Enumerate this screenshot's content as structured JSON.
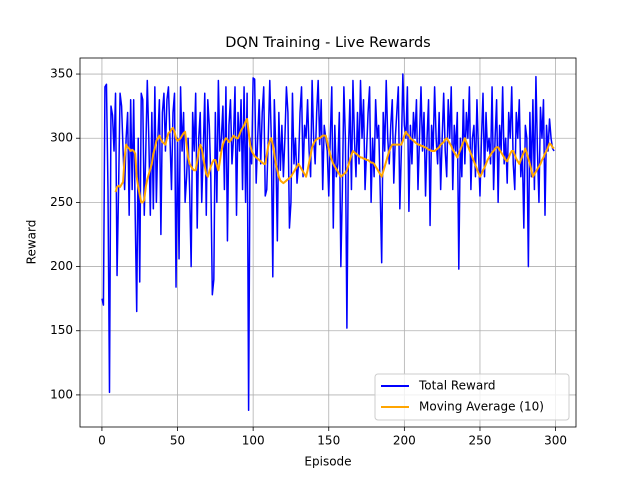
{
  "chart_data": {
    "type": "line",
    "title": "DQN Training - Live Rewards",
    "x_label": "Episode",
    "y_label": "Reward",
    "x": [
      0,
      1,
      2,
      3,
      4,
      5,
      6,
      7,
      8,
      9,
      10,
      11,
      12,
      13,
      14,
      15,
      16,
      17,
      18,
      19,
      20,
      21,
      22,
      23,
      24,
      25,
      26,
      27,
      28,
      29,
      30,
      31,
      32,
      33,
      34,
      35,
      36,
      37,
      38,
      39,
      40,
      41,
      42,
      43,
      44,
      45,
      46,
      47,
      48,
      49,
      50,
      51,
      52,
      53,
      54,
      55,
      56,
      57,
      58,
      59,
      60,
      61,
      62,
      63,
      64,
      65,
      66,
      67,
      68,
      69,
      70,
      71,
      72,
      73,
      74,
      75,
      76,
      77,
      78,
      79,
      80,
      81,
      82,
      83,
      84,
      85,
      86,
      87,
      88,
      89,
      90,
      91,
      92,
      93,
      94,
      95,
      96,
      97,
      98,
      99,
      100,
      101,
      102,
      103,
      104,
      105,
      106,
      107,
      108,
      109,
      110,
      111,
      112,
      113,
      114,
      115,
      116,
      117,
      118,
      119,
      120,
      121,
      122,
      123,
      124,
      125,
      126,
      127,
      128,
      129,
      130,
      131,
      132,
      133,
      134,
      135,
      136,
      137,
      138,
      139,
      140,
      141,
      142,
      143,
      144,
      145,
      146,
      147,
      148,
      149,
      150,
      151,
      152,
      153,
      154,
      155,
      156,
      157,
      158,
      159,
      160,
      161,
      162,
      163,
      164,
      165,
      166,
      167,
      168,
      169,
      170,
      171,
      172,
      173,
      174,
      175,
      176,
      177,
      178,
      179,
      180,
      181,
      182,
      183,
      184,
      185,
      186,
      187,
      188,
      189,
      190,
      191,
      192,
      193,
      194,
      195,
      196,
      197,
      198,
      199,
      200,
      201,
      202,
      203,
      204,
      205,
      206,
      207,
      208,
      209,
      210,
      211,
      212,
      213,
      214,
      215,
      216,
      217,
      218,
      219,
      220,
      221,
      222,
      223,
      224,
      225,
      226,
      227,
      228,
      229,
      230,
      231,
      232,
      233,
      234,
      235,
      236,
      237,
      238,
      239,
      240,
      241,
      242,
      243,
      244,
      245,
      246,
      247,
      248,
      249,
      250,
      251,
      252,
      253,
      254,
      255,
      256,
      257,
      258,
      259,
      260,
      261,
      262,
      263,
      264,
      265,
      266,
      267,
      268,
      269,
      270,
      271,
      272,
      273,
      274,
      275,
      276,
      277,
      278,
      279,
      280,
      281,
      282,
      283,
      284,
      285,
      286,
      287,
      288,
      289,
      290,
      291,
      292,
      293,
      294,
      295,
      296,
      297,
      298,
      299
    ],
    "series": [
      {
        "name": "Total Reward",
        "color": "#0000ff",
        "values": [
          175,
          170,
          340,
          342,
          260,
          102,
          325,
          318,
          290,
          335,
          193,
          260,
          335,
          325,
          290,
          260,
          300,
          320,
          240,
          330,
          260,
          330,
          240,
          165,
          300,
          188,
          335,
          330,
          240,
          290,
          345,
          300,
          240,
          320,
          245,
          340,
          250,
          300,
          330,
          225,
          320,
          335,
          290,
          330,
          340,
          300,
          260,
          320,
          335,
          184,
          300,
          206,
          340,
          290,
          320,
          250,
          270,
          300,
          260,
          200,
          320,
          290,
          335,
          230,
          300,
          320,
          250,
          290,
          335,
          240,
          330,
          310,
          270,
          178,
          190,
          320,
          250,
          345,
          290,
          300,
          325,
          260,
          340,
          220,
          310,
          330,
          280,
          300,
          340,
          240,
          320,
          290,
          330,
          260,
          340,
          250,
          335,
          88,
          300,
          280,
          347,
          346,
          265,
          300,
          330,
          280,
          320,
          340,
          255,
          260,
          300,
          345,
          300,
          192,
          330,
          290,
          220,
          320,
          275,
          310,
          270,
          300,
          340,
          320,
          230,
          250,
          335,
          280,
          300,
          265,
          280,
          320,
          340,
          270,
          310,
          300,
          330,
          290,
          270,
          345,
          300,
          280,
          320,
          345,
          295,
          330,
          260,
          310,
          300,
          290,
          255,
          300,
          340,
          230,
          310,
          270,
          280,
          320,
          200,
          260,
          340,
          300,
          152,
          290,
          330,
          260,
          345,
          300,
          270,
          320,
          280,
          345,
          300,
          330,
          260,
          290,
          320,
          340,
          250,
          300,
          270,
          330,
          300,
          310,
          260,
          203,
          320,
          290,
          345,
          300,
          280,
          310,
          330,
          265,
          300,
          320,
          340,
          245,
          290,
          350,
          310,
          300,
          340,
          243,
          310,
          280,
          320,
          300,
          330,
          260,
          300,
          340,
          290,
          320,
          255,
          300,
          330,
          232,
          310,
          290,
          340,
          300,
          280,
          320,
          260,
          300,
          335,
          290,
          270,
          330,
          300,
          340,
          260,
          310,
          290,
          320,
          198,
          300,
          270,
          330,
          280,
          320,
          300,
          340,
          260,
          300,
          310,
          270,
          330,
          290,
          255,
          300,
          335,
          270,
          320,
          290,
          300,
          280,
          340,
          260,
          300,
          330,
          250,
          310,
          290,
          340,
          280,
          300,
          265,
          320,
          300,
          340,
          280,
          260,
          320,
          300,
          330,
          270,
          290,
          230,
          310,
          300,
          200,
          320,
          270,
          330,
          260,
          348,
          290,
          250,
          324,
          300,
          330,
          240,
          310,
          290,
          315,
          300,
          292,
          290
        ]
      },
      {
        "name": "Moving Average (10)",
        "color": "#ffa500",
        "values": [
          null,
          null,
          null,
          null,
          null,
          null,
          null,
          null,
          null,
          258,
          262,
          263,
          262,
          264,
          266,
          285,
          295,
          293,
          292,
          290,
          291,
          290,
          288,
          270,
          262,
          256,
          250,
          250,
          252,
          262,
          268,
          272,
          276,
          280,
          288,
          292,
          298,
          300,
          302,
          299,
          297,
          296,
          295,
          300,
          304,
          305,
          307,
          308,
          305,
          300,
          298,
          299,
          300,
          302,
          304,
          305,
          295,
          285,
          280,
          278,
          276,
          275,
          275,
          282,
          290,
          295,
          292,
          285,
          278,
          272,
          270,
          274,
          278,
          281,
          283,
          283,
          279,
          275,
          282,
          290,
          295,
          298,
          300,
          299,
          297,
          298,
          300,
          302,
          301,
          300,
          300,
          303,
          306,
          308,
          310,
          313,
          315,
          305,
          295,
          290,
          288,
          286,
          285,
          284,
          283,
          282,
          281,
          280,
          280,
          287,
          294,
          298,
          300,
          295,
          288,
          280,
          275,
          270,
          267,
          266,
          265,
          266,
          267,
          268,
          269,
          270,
          272,
          274,
          276,
          278,
          280,
          278,
          276,
          274,
          272,
          270,
          275,
          281,
          287,
          293,
          296,
          298,
          299,
          300,
          300,
          301,
          302,
          302,
          302,
          297,
          292,
          287,
          283,
          280,
          278,
          276,
          274,
          272,
          270,
          271,
          272,
          273,
          275,
          279,
          283,
          287,
          290,
          289,
          288,
          287,
          286,
          285,
          285,
          284,
          284,
          283,
          283,
          282,
          281,
          281,
          280,
          278,
          276,
          274,
          272,
          270,
          274,
          278,
          282,
          286,
          290,
          293,
          295,
          295,
          295,
          295,
          295,
          295,
          295,
          298,
          302,
          305,
          303,
          302,
          300,
          299,
          298,
          297,
          296,
          295,
          295,
          294,
          294,
          293,
          293,
          292,
          291,
          291,
          290,
          290,
          290,
          291,
          292,
          293,
          295,
          296,
          297,
          299,
          300,
          298,
          296,
          294,
          291,
          289,
          287,
          285,
          288,
          291,
          294,
          297,
          300,
          297,
          294,
          291,
          288,
          285,
          282,
          279,
          276,
          273,
          270,
          272,
          275,
          277,
          280,
          283,
          285,
          287,
          289,
          290,
          292,
          293,
          293,
          291,
          289,
          287,
          285,
          283,
          282,
          285,
          288,
          290,
          290,
          287,
          284,
          282,
          280,
          283,
          286,
          289,
          292,
          288,
          284,
          280,
          275,
          270,
          272,
          274,
          276,
          278,
          280,
          283,
          285,
          288,
          290,
          293,
          296,
          295,
          293,
          292
        ]
      }
    ],
    "xlim": [
      -14.5,
      313.5
    ],
    "ylim": [
      75,
      362.5
    ],
    "xticks": [
      0,
      50,
      100,
      150,
      200,
      250,
      300
    ],
    "yticks": [
      100,
      150,
      200,
      250,
      300,
      350
    ],
    "grid": true,
    "legend_position": "lower right"
  }
}
